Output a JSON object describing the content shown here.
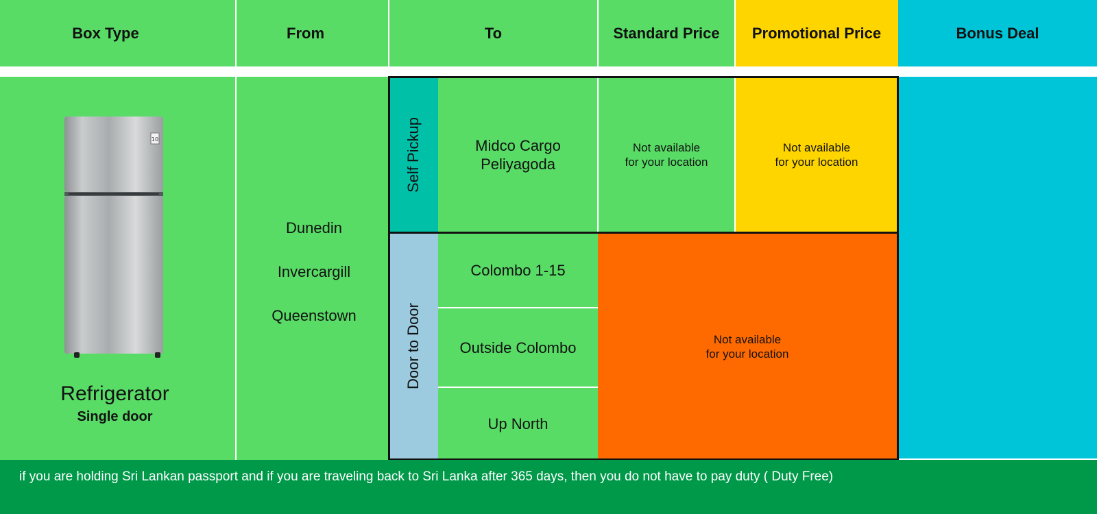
{
  "headers": {
    "box_type": "Box Type",
    "from": "From",
    "to": "To",
    "standard_price": "Standard Price",
    "promotional_price": "Promotional Price",
    "bonus_deal": "Bonus Deal"
  },
  "product": {
    "name": "Refrigerator",
    "variant": "Single door",
    "badge": "10"
  },
  "origins": [
    "Dunedin",
    "Invercargill",
    "Queenstown"
  ],
  "delivery_types": {
    "self_pickup": "Self Pickup",
    "door_to_door": "Door to Door"
  },
  "destinations": {
    "pickup_line1": "Midco Cargo",
    "pickup_line2": "Peliyagoda",
    "colombo": "Colombo 1-15",
    "outside": "Outside Colombo",
    "north": "Up North"
  },
  "availability": {
    "line1": "Not available",
    "line2": "for your location"
  },
  "footer_note": "if you are holding Sri Lankan passport and if you are traveling back to Sri Lanka after 365 days, then you do not have to pay duty ( Duty Free)",
  "colors": {
    "green": "#58dc66",
    "yellow": "#ffd500",
    "cyan": "#00c4d8",
    "orange": "#ff6a00",
    "teal": "#00c0a8",
    "light_blue": "#9ccbe0",
    "footer_green": "#00994a"
  },
  "icons": {
    "product_image": "refrigerator-image"
  }
}
